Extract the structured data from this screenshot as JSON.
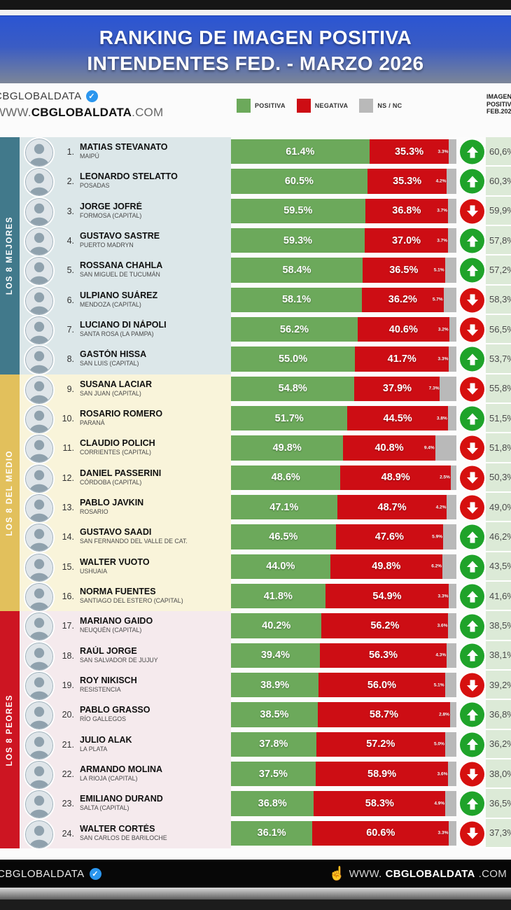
{
  "title": {
    "line1": "RANKING DE IMAGEN POSITIVA",
    "line2": "INTENDENTES FED. - MARZO 2026"
  },
  "branding": {
    "logo": "CBGLOBALDATA",
    "verified_icon": "check-seal",
    "url_prefix": "WWW.",
    "url_bold": "CBGLOBALDATA",
    "url_suffix": ".COM"
  },
  "legend": {
    "positiva": "POSITIVA",
    "negativa": "NEGATIVA",
    "nsnc": "NS / NC"
  },
  "right_header": {
    "line1": "IMAGEN",
    "line2": "POSITIVA",
    "line3": "FEB.2026"
  },
  "colors": {
    "positiva": "#6ca95b",
    "negativa": "#cd0d14",
    "nsnc": "#b9b9b9",
    "up": "#1fa32a",
    "down": "#d6100f",
    "feb_bg": "#dcead7",
    "banner_blue": "#2b55d2",
    "badge_blue": "#2b96ee"
  },
  "groups": [
    {
      "label": "LOS 8 MEJORES",
      "color": "#41798b",
      "row_bg": "#dce7e9"
    },
    {
      "label": "LOS 8 DEL MEDIO",
      "color": "#e2c05c",
      "row_bg": "#f9f4da"
    },
    {
      "label": "LOS 8 PEORES",
      "color": "#cd1522",
      "row_bg": "#f5eaed"
    }
  ],
  "rows": [
    {
      "rank": "1.",
      "name": "MATIAS STEVANATO",
      "city": "MAIPÚ",
      "pos": "61.4%",
      "neg": "35.3%",
      "ns": "3.3%",
      "trend": "up",
      "feb": "60,6%"
    },
    {
      "rank": "2.",
      "name": "LEONARDO STELATTO",
      "city": "POSADAS",
      "pos": "60.5%",
      "neg": "35.3%",
      "ns": "4.2%",
      "trend": "up",
      "feb": "60,3%"
    },
    {
      "rank": "3.",
      "name": "JORGE JOFRÉ",
      "city": "FORMOSA (CAPITAL)",
      "pos": "59.5%",
      "neg": "36.8%",
      "ns": "3.7%",
      "trend": "down",
      "feb": "59,9%"
    },
    {
      "rank": "4.",
      "name": "GUSTAVO SASTRE",
      "city": "PUERTO MADRYN",
      "pos": "59.3%",
      "neg": "37.0%",
      "ns": "3.7%",
      "trend": "up",
      "feb": "57,8%"
    },
    {
      "rank": "5.",
      "name": "ROSSANA CHAHLA",
      "city": "SAN MIGUEL DE TUCUMÁN",
      "pos": "58.4%",
      "neg": "36.5%",
      "ns": "5.1%",
      "trend": "up",
      "feb": "57,2%"
    },
    {
      "rank": "6.",
      "name": "ULPIANO SUÁREZ",
      "city": "MENDOZA (CAPITAL)",
      "pos": "58.1%",
      "neg": "36.2%",
      "ns": "5.7%",
      "trend": "down",
      "feb": "58,3%"
    },
    {
      "rank": "7.",
      "name": "LUCIANO DI NÁPOLI",
      "city": "SANTA ROSA (LA PAMPA)",
      "pos": "56.2%",
      "neg": "40.6%",
      "ns": "3.2%",
      "trend": "down",
      "feb": "56,5%"
    },
    {
      "rank": "8.",
      "name": "GASTÓN HISSA",
      "city": "SAN LUIS (CAPITAL)",
      "pos": "55.0%",
      "neg": "41.7%",
      "ns": "3.3%",
      "trend": "up",
      "feb": "53,7%"
    },
    {
      "rank": "9.",
      "name": "SUSANA LACIAR",
      "city": "SAN JUAN (CAPITAL)",
      "pos": "54.8%",
      "neg": "37.9%",
      "ns": "7.3%",
      "trend": "down",
      "feb": "55,8%"
    },
    {
      "rank": "10.",
      "name": "ROSARIO ROMERO",
      "city": "PARANÁ",
      "pos": "51.7%",
      "neg": "44.5%",
      "ns": "3.8%",
      "trend": "up",
      "feb": "51,5%"
    },
    {
      "rank": "11.",
      "name": "CLAUDIO POLICH",
      "city": "CORRIENTES (CAPITAL)",
      "pos": "49.8%",
      "neg": "40.8%",
      "ns": "9.4%",
      "trend": "down",
      "feb": "51,8%"
    },
    {
      "rank": "12.",
      "name": "DANIEL PASSERINI",
      "city": "CÓRDOBA (CAPITAL)",
      "pos": "48.6%",
      "neg": "48.9%",
      "ns": "2.5%",
      "trend": "down",
      "feb": "50,3%"
    },
    {
      "rank": "13.",
      "name": "PABLO JAVKIN",
      "city": "ROSARIO",
      "pos": "47.1%",
      "neg": "48.7%",
      "ns": "4.2%",
      "trend": "down",
      "feb": "49,0%"
    },
    {
      "rank": "14.",
      "name": "GUSTAVO SAADI",
      "city": "SAN FERNANDO DEL VALLE DE CAT.",
      "pos": "46.5%",
      "neg": "47.6%",
      "ns": "5.9%",
      "trend": "up",
      "feb": "46,2%"
    },
    {
      "rank": "15.",
      "name": "WALTER VUOTO",
      "city": "USHUAIA",
      "pos": "44.0%",
      "neg": "49.8%",
      "ns": "6.2%",
      "trend": "up",
      "feb": "43,5%"
    },
    {
      "rank": "16.",
      "name": "NORMA FUENTES",
      "city": "SANTIAGO DEL ESTERO (CAPITAL)",
      "pos": "41.8%",
      "neg": "54.9%",
      "ns": "3.3%",
      "trend": "up",
      "feb": "41,6%"
    },
    {
      "rank": "17.",
      "name": "MARIANO GAIDO",
      "city": "NEUQUÉN (CAPITAL)",
      "pos": "40.2%",
      "neg": "56.2%",
      "ns": "3.6%",
      "trend": "up",
      "feb": "38,5%"
    },
    {
      "rank": "18.",
      "name": "RAÚL JORGE",
      "city": "SAN SALVADOR DE JUJUY",
      "pos": "39.4%",
      "neg": "56.3%",
      "ns": "4.3%",
      "trend": "up",
      "feb": "38,1%"
    },
    {
      "rank": "19.",
      "name": "ROY NIKISCH",
      "city": "RESISTENCIA",
      "pos": "38.9%",
      "neg": "56.0%",
      "ns": "5.1%",
      "trend": "down",
      "feb": "39,2%"
    },
    {
      "rank": "20.",
      "name": "PABLO GRASSO",
      "city": "RÍO GALLEGOS",
      "pos": "38.5%",
      "neg": "58.7%",
      "ns": "2.8%",
      "trend": "up",
      "feb": "36,8%"
    },
    {
      "rank": "21.",
      "name": "JULIO ALAK",
      "city": "LA PLATA",
      "pos": "37.8%",
      "neg": "57.2%",
      "ns": "5.0%",
      "trend": "up",
      "feb": "36,2%"
    },
    {
      "rank": "22.",
      "name": "ARMANDO MOLINA",
      "city": "LA RIOJA (CAPITAL)",
      "pos": "37.5%",
      "neg": "58.9%",
      "ns": "3.6%",
      "trend": "down",
      "feb": "38,0%"
    },
    {
      "rank": "23.",
      "name": "EMILIANO DURAND",
      "city": "SALTA (CAPITAL)",
      "pos": "36.8%",
      "neg": "58.3%",
      "ns": "4.9%",
      "trend": "up",
      "feb": "36,5%"
    },
    {
      "rank": "24.",
      "name": "WALTER CORTÉS",
      "city": "SAN CARLOS DE BARILOCHE",
      "pos": "36.1%",
      "neg": "60.6%",
      "ns": "3.3%",
      "trend": "down",
      "feb": "37,3%"
    }
  ],
  "footer": {
    "logo": "CBGLOBALDATA",
    "hand_icon": "pointer-hand",
    "url_prefix": "WWW.",
    "url_bold": "CBGLOBALDATA",
    "url_suffix": ".COM"
  },
  "chart_data": {
    "type": "bar",
    "orientation": "horizontal-stacked",
    "title": "RANKING DE IMAGEN POSITIVA INTENDENTES FED. - MARZO 2026",
    "categories": [
      "MATIAS STEVANATO",
      "LEONARDO STELATTO",
      "JORGE JOFRÉ",
      "GUSTAVO SASTRE",
      "ROSSANA CHAHLA",
      "ULPIANO SUÁREZ",
      "LUCIANO DI NÁPOLI",
      "GASTÓN HISSA",
      "SUSANA LACIAR",
      "ROSARIO ROMERO",
      "CLAUDIO POLICH",
      "DANIEL PASSERINI",
      "PABLO JAVKIN",
      "GUSTAVO SAADI",
      "WALTER VUOTO",
      "NORMA FUENTES",
      "MARIANO GAIDO",
      "RAÚL JORGE",
      "ROY NIKISCH",
      "PABLO GRASSO",
      "JULIO ALAK",
      "ARMANDO MOLINA",
      "EMILIANO DURAND",
      "WALTER CORTÉS"
    ],
    "series": [
      {
        "name": "POSITIVA",
        "values": [
          61.4,
          60.5,
          59.5,
          59.3,
          58.4,
          58.1,
          56.2,
          55.0,
          54.8,
          51.7,
          49.8,
          48.6,
          47.1,
          46.5,
          44.0,
          41.8,
          40.2,
          39.4,
          38.9,
          38.5,
          37.8,
          37.5,
          36.8,
          36.1
        ]
      },
      {
        "name": "NEGATIVA",
        "values": [
          35.3,
          35.3,
          36.8,
          37.0,
          36.5,
          36.2,
          40.6,
          41.7,
          37.9,
          44.5,
          40.8,
          48.9,
          48.7,
          47.6,
          49.8,
          54.9,
          56.2,
          56.3,
          56.0,
          58.7,
          57.2,
          58.9,
          58.3,
          60.6
        ]
      },
      {
        "name": "NS / NC",
        "values": [
          3.3,
          4.2,
          3.7,
          3.7,
          5.1,
          5.7,
          3.2,
          3.3,
          7.3,
          3.8,
          9.4,
          2.5,
          4.2,
          5.9,
          6.2,
          3.3,
          3.6,
          4.3,
          5.1,
          2.8,
          5.0,
          3.6,
          4.9,
          3.3
        ]
      },
      {
        "name": "IMAGEN POSITIVA FEB.2026",
        "values": [
          60.6,
          60.3,
          59.9,
          57.8,
          57.2,
          58.3,
          56.5,
          53.7,
          55.8,
          51.5,
          51.8,
          50.3,
          49.0,
          46.2,
          43.5,
          41.6,
          38.5,
          38.1,
          39.2,
          36.8,
          36.2,
          38.0,
          36.5,
          37.3
        ]
      }
    ],
    "trend_vs_feb": [
      "up",
      "up",
      "down",
      "up",
      "up",
      "down",
      "down",
      "up",
      "down",
      "up",
      "down",
      "down",
      "down",
      "up",
      "up",
      "up",
      "up",
      "up",
      "down",
      "up",
      "up",
      "down",
      "up",
      "down"
    ],
    "xlim": [
      0,
      100
    ],
    "legend_position": "top",
    "grid": false
  }
}
